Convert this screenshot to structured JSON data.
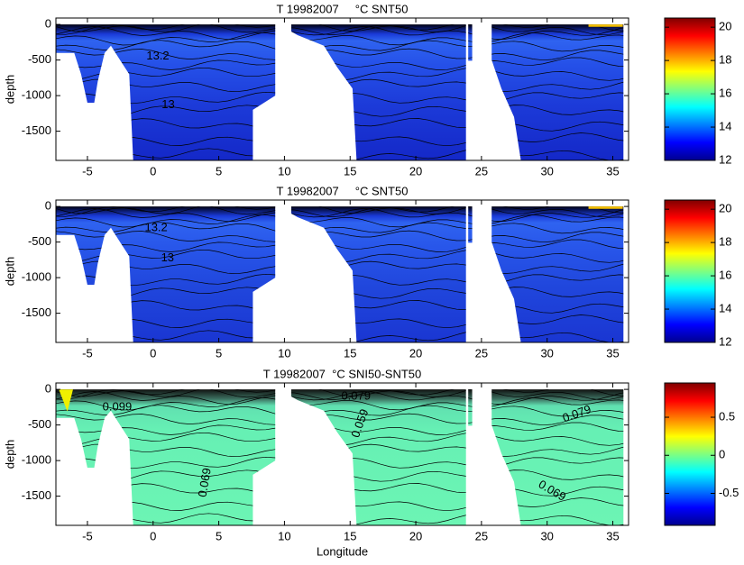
{
  "chart_data": [
    {
      "type": "contour",
      "title": "T 19982007     °C SNT50",
      "y_label": "depth",
      "xlim": [
        -7.4,
        36.2
      ],
      "xticks": [
        -5,
        0,
        5,
        10,
        15,
        20,
        25,
        30,
        35
      ],
      "ylim": [
        -1910,
        90
      ],
      "yticks": [
        -1500,
        -1000,
        -500,
        0
      ],
      "colorbar": {
        "clim": [
          12,
          20.55
        ],
        "ticks": [
          12,
          14,
          16,
          18,
          20
        ]
      },
      "annotations": [
        "13.2",
        "13"
      ]
    },
    {
      "type": "contour",
      "title": "T 19982007     °C SNT50",
      "y_label": "depth",
      "xlim": [
        -7.4,
        36.2
      ],
      "xticks": [
        -5,
        0,
        5,
        10,
        15,
        20,
        25,
        30,
        35
      ],
      "ylim": [
        -1910,
        90
      ],
      "yticks": [
        -1500,
        -1000,
        -500,
        0
      ],
      "colorbar": {
        "clim": [
          12,
          20.55
        ],
        "ticks": [
          12,
          14,
          16,
          18,
          20
        ]
      },
      "annotations": [
        "13.2",
        "13"
      ]
    },
    {
      "type": "contour",
      "title": "T 19982007  °C SNI50-SNT50",
      "y_label": "depth",
      "x_label": "Longitude",
      "xlim": [
        -7.4,
        36.2
      ],
      "xticks": [
        -5,
        0,
        5,
        10,
        15,
        20,
        25,
        30,
        35
      ],
      "ylim": [
        -1910,
        90
      ],
      "yticks": [
        -1500,
        -1000,
        -500,
        0
      ],
      "colorbar": {
        "clim": [
          -0.92,
          0.95
        ],
        "ticks": [
          -0.5,
          0,
          0.5
        ]
      },
      "annotations": [
        "0.079",
        "0.099",
        "0.059",
        "0.069",
        "0.079",
        "0.069"
      ]
    }
  ]
}
